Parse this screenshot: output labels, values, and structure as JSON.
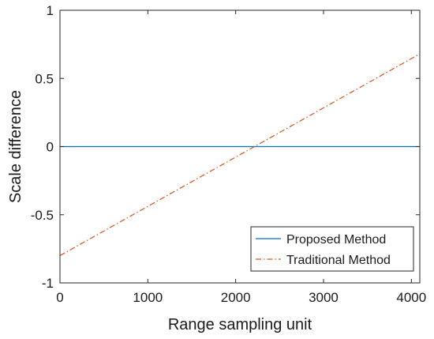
{
  "chart_data": {
    "type": "line",
    "title": "",
    "xlabel": "Range sampling unit",
    "ylabel": "Scale difference",
    "xlim": [
      0,
      4096
    ],
    "ylim": [
      -1,
      1
    ],
    "xticks": [
      0,
      1000,
      2000,
      3000,
      4000
    ],
    "yticks": [
      -1,
      -0.5,
      0,
      0.5,
      1
    ],
    "xtick_labels": [
      "0",
      "1000",
      "2000",
      "3000",
      "4000"
    ],
    "ytick_labels": [
      "-1",
      "-0.5",
      "0",
      "0.5",
      "1"
    ],
    "grid": false,
    "legend_position": "bottom-right",
    "series": [
      {
        "name": "Proposed Method",
        "color": "#0072BD",
        "line_style": "solid",
        "x": [
          0,
          4096
        ],
        "y": [
          0,
          0
        ]
      },
      {
        "name": "Traditional Method",
        "color": "#D95319",
        "line_style": "dash-dot",
        "x": [
          0,
          4096
        ],
        "y": [
          -0.8,
          0.68
        ]
      }
    ]
  }
}
